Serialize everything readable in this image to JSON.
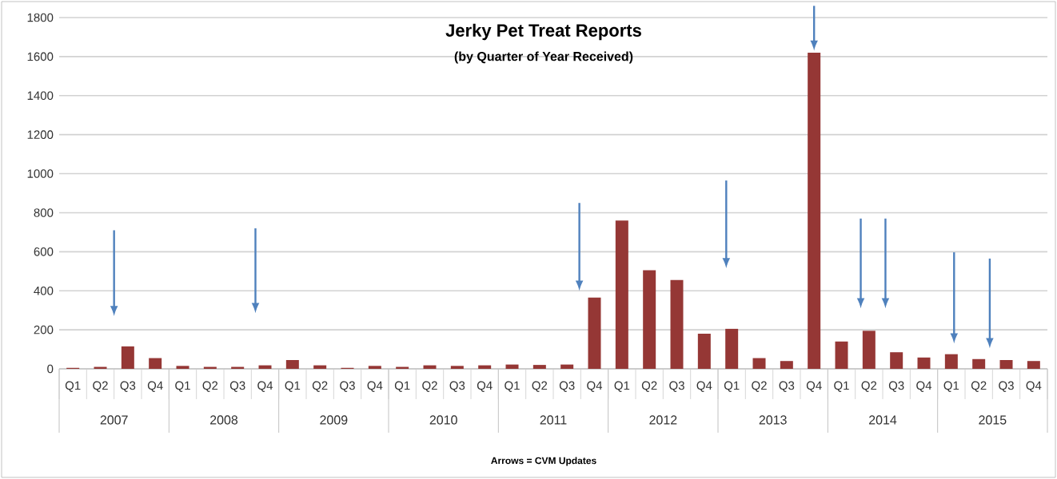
{
  "chart_data": {
    "type": "bar",
    "title": "Jerky Pet Treat Reports",
    "subtitle": "(by Quarter of Year Received)",
    "categories": [
      "Q1",
      "Q2",
      "Q3",
      "Q4",
      "Q1",
      "Q2",
      "Q3",
      "Q4",
      "Q1",
      "Q2",
      "Q3",
      "Q4",
      "Q1",
      "Q2",
      "Q3",
      "Q4",
      "Q1",
      "Q2",
      "Q3",
      "Q4",
      "Q1",
      "Q2",
      "Q3",
      "Q4",
      "Q1",
      "Q2",
      "Q3",
      "Q4",
      "Q1",
      "Q2",
      "Q3",
      "Q4",
      "Q1",
      "Q2",
      "Q3",
      "Q4"
    ],
    "values": [
      5,
      10,
      115,
      55,
      15,
      10,
      10,
      18,
      45,
      18,
      5,
      15,
      10,
      18,
      15,
      18,
      22,
      20,
      22,
      365,
      760,
      505,
      455,
      180,
      205,
      55,
      40,
      1620,
      140,
      195,
      85,
      58,
      75,
      50,
      45,
      40
    ],
    "color": "#953735",
    "ylim": [
      0,
      1800
    ],
    "yticks": [
      0,
      200,
      400,
      600,
      800,
      1000,
      1200,
      1400,
      1600,
      1800
    ],
    "grid": "y",
    "annotations": [
      "2007",
      "2008",
      "2009",
      "2010",
      "2011",
      "2012",
      "2013",
      "2014",
      "2015",
      "Arrows = CVM Updates"
    ]
  }
}
